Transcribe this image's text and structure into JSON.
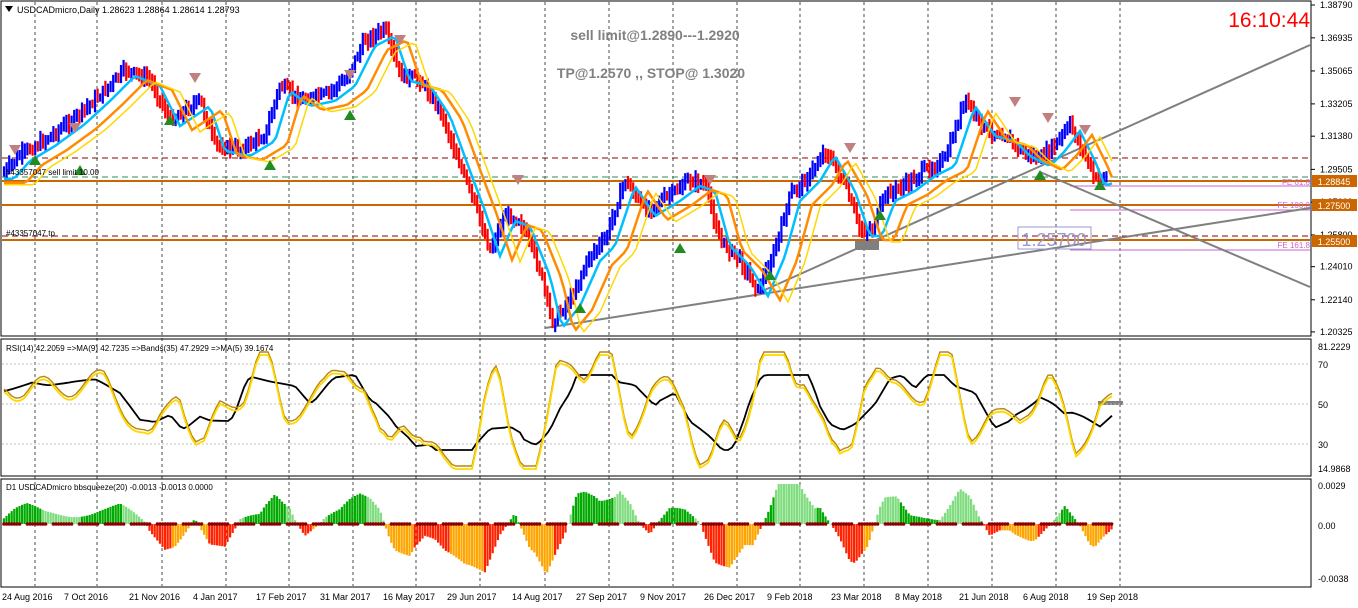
{
  "main_panel": {
    "title": "USDCADmicro,Daily  1.28623 1.28864 1.28614 1.28793",
    "clock": "16:10:44",
    "annotation_line1": "sell limit@1.2890---1.2920",
    "annotation_line2": "TP@1.2570 ,,  STOP@ 1.3020",
    "order_label": "#43357047 sell limit 10.00",
    "tp_label": "#43357047 tp",
    "target_box": "1.25700",
    "fe_labels": [
      "FE 61.8",
      "FE 100.0",
      "FE 161.8"
    ],
    "price_levels": [
      "1.38790",
      "1.36935",
      "1.35065",
      "1.33205",
      "1.31380",
      "1.29505",
      "1.27660",
      "1.25800",
      "1.24010",
      "1.22140",
      "1.20325"
    ],
    "price_tags": {
      "current": "1.28845",
      "level2": "1.27500",
      "level3": "1.25500"
    }
  },
  "rsi_panel": {
    "title": "RSI(14) 42.2059  =>MA(9) 42.7235  =>Bands(35) 47.2929  =>MA(5) 39.1674",
    "levels": [
      "81.2229",
      "70",
      "50",
      "30",
      "14.9868"
    ]
  },
  "squeeze_panel": {
    "title": "D1 USDCADmicro bbsqueeze(20) -0.0013 -0.0013 0.0000",
    "levels": [
      "0.0029",
      "0.00",
      "-0.0038"
    ]
  },
  "time_axis": [
    "24 Aug 2016",
    "7 Oct 2016",
    "21 Nov 2016",
    "4 Jan 2017",
    "17 Feb 2017",
    "31 Mar 2017",
    "16 May 2017",
    "29 Jun 2017",
    "14 Aug 2017",
    "27 Sep 2017",
    "9 Nov 2017",
    "26 Dec 2017",
    "9 Feb 2018",
    "23 Mar 2018",
    "8 May 2018",
    "21 Jun 2018",
    "6 Aug 2018",
    "19 Sep 2018"
  ],
  "chart_data": {
    "type": "line",
    "title": "USDCADmicro,Daily",
    "ylim": [
      1.2032,
      1.3879
    ],
    "x": [
      "24 Aug 2016",
      "7 Oct 2016",
      "21 Nov 2016",
      "4 Jan 2017",
      "17 Feb 2017",
      "31 Mar 2017",
      "16 May 2017",
      "29 Jun 2017",
      "14 Aug 2017",
      "27 Sep 2017",
      "9 Nov 2017",
      "26 Dec 2017",
      "9 Feb 2018",
      "23 Mar 2018",
      "8 May 2018",
      "21 Jun 2018",
      "6 Aug 2018",
      "19 Sep 2018"
    ],
    "series": [
      {
        "values": [
          1.296,
          1.318,
          1.335,
          1.315,
          1.306,
          1.335,
          1.348,
          1.258,
          1.246,
          1.25,
          1.283,
          1.282,
          1.246,
          1.258,
          1.291,
          1.308,
          1.318,
          1.288
        ]
      }
    ]
  },
  "colors": {
    "bull": "#0000ff",
    "bear": "#ff0000",
    "ma_fast": "#00bfff",
    "ma_slow": "#ff8c00",
    "grid": "#000000",
    "clock": "#ff0000"
  }
}
